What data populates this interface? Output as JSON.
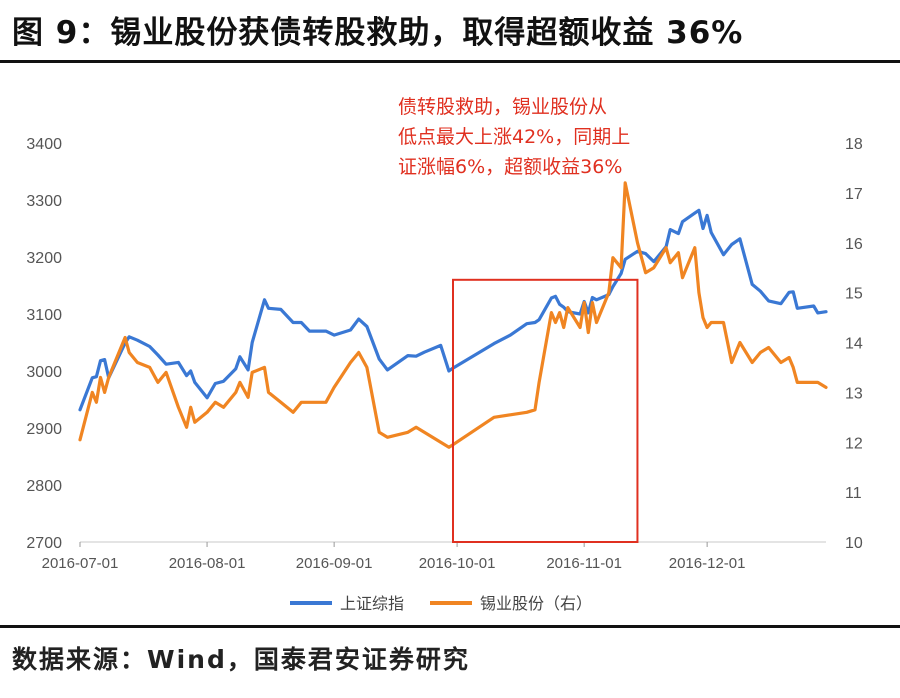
{
  "title": "图 9：锡业股份获债转股救助，取得超额收益 36%",
  "source": "数据来源：Wind，国泰君安证券研究",
  "chart_data": {
    "type": "line",
    "x_tick_labels": [
      "2016-07-01",
      "2016-08-01",
      "2016-09-01",
      "2016-10-01",
      "2016-11-01",
      "2016-12-01"
    ],
    "left_axis": {
      "ylim": [
        2700,
        3400
      ],
      "ticks": [
        2700,
        2800,
        2900,
        3000,
        3100,
        3200,
        3300,
        3400
      ]
    },
    "right_axis": {
      "ylim": [
        10,
        18
      ],
      "ticks": [
        10,
        11,
        12,
        13,
        14,
        15,
        16,
        17,
        18
      ]
    },
    "grid": false,
    "legend_placement": "bottom",
    "series": [
      {
        "name": "上证综指",
        "axis": "left",
        "color": "#3a78d4",
        "points": [
          [
            "2016-07-01",
            2932
          ],
          [
            "2016-07-04",
            2988
          ],
          [
            "2016-07-05",
            2990
          ],
          [
            "2016-07-06",
            3018
          ],
          [
            "2016-07-07",
            3020
          ],
          [
            "2016-07-08",
            2988
          ],
          [
            "2016-07-12",
            3049
          ],
          [
            "2016-07-13",
            3060
          ],
          [
            "2016-07-15",
            3054
          ],
          [
            "2016-07-18",
            3043
          ],
          [
            "2016-07-20",
            3028
          ],
          [
            "2016-07-22",
            3012
          ],
          [
            "2016-07-25",
            3015
          ],
          [
            "2016-07-27",
            2992
          ],
          [
            "2016-07-28",
            3000
          ],
          [
            "2016-07-29",
            2980
          ],
          [
            "2016-08-01",
            2953
          ],
          [
            "2016-08-03",
            2978
          ],
          [
            "2016-08-05",
            2982
          ],
          [
            "2016-08-08",
            3004
          ],
          [
            "2016-08-09",
            3025
          ],
          [
            "2016-08-11",
            3002
          ],
          [
            "2016-08-12",
            3050
          ],
          [
            "2016-08-15",
            3125
          ],
          [
            "2016-08-16",
            3110
          ],
          [
            "2016-08-19",
            3108
          ],
          [
            "2016-08-22",
            3085
          ],
          [
            "2016-08-24",
            3085
          ],
          [
            "2016-08-26",
            3070
          ],
          [
            "2016-08-30",
            3070
          ],
          [
            "2016-09-01",
            3063
          ],
          [
            "2016-09-05",
            3072
          ],
          [
            "2016-09-07",
            3091
          ],
          [
            "2016-09-09",
            3078
          ],
          [
            "2016-09-12",
            3021
          ],
          [
            "2016-09-14",
            3002
          ],
          [
            "2016-09-19",
            3027
          ],
          [
            "2016-09-21",
            3026
          ],
          [
            "2016-09-23",
            3033
          ],
          [
            "2016-09-27",
            3045
          ],
          [
            "2016-09-29",
            3000
          ],
          [
            "2016-09-30",
            3005
          ],
          [
            "2016-10-10",
            3048
          ],
          [
            "2016-10-14",
            3063
          ],
          [
            "2016-10-18",
            3083
          ],
          [
            "2016-10-20",
            3085
          ],
          [
            "2016-10-21",
            3090
          ],
          [
            "2016-10-24",
            3128
          ],
          [
            "2016-10-25",
            3131
          ],
          [
            "2016-10-26",
            3117
          ],
          [
            "2016-10-27",
            3112
          ],
          [
            "2016-10-28",
            3104
          ],
          [
            "2016-10-31",
            3100
          ],
          [
            "2016-11-01",
            3122
          ],
          [
            "2016-11-02",
            3102
          ],
          [
            "2016-11-03",
            3129
          ],
          [
            "2016-11-04",
            3125
          ],
          [
            "2016-11-07",
            3134
          ],
          [
            "2016-11-08",
            3148
          ],
          [
            "2016-11-10",
            3171
          ],
          [
            "2016-11-11",
            3196
          ],
          [
            "2016-11-14",
            3210
          ],
          [
            "2016-11-16",
            3206
          ],
          [
            "2016-11-18",
            3192
          ],
          [
            "2016-11-21",
            3218
          ],
          [
            "2016-11-22",
            3248
          ],
          [
            "2016-11-24",
            3241
          ],
          [
            "2016-11-25",
            3262
          ],
          [
            "2016-11-28",
            3277
          ],
          [
            "2016-11-29",
            3282
          ],
          [
            "2016-11-30",
            3250
          ],
          [
            "2016-12-01",
            3273
          ],
          [
            "2016-12-02",
            3243
          ],
          [
            "2016-12-05",
            3204
          ],
          [
            "2016-12-07",
            3222
          ],
          [
            "2016-12-09",
            3232
          ],
          [
            "2016-12-12",
            3152
          ],
          [
            "2016-12-14",
            3140
          ],
          [
            "2016-12-16",
            3123
          ],
          [
            "2016-12-19",
            3118
          ],
          [
            "2016-12-21",
            3138
          ],
          [
            "2016-12-22",
            3139
          ],
          [
            "2016-12-23",
            3110
          ],
          [
            "2016-12-27",
            3114
          ],
          [
            "2016-12-28",
            3102
          ],
          [
            "2016-12-30",
            3104
          ]
        ]
      },
      {
        "name": "锡业股份（右）",
        "axis": "right",
        "color": "#f08522",
        "points": [
          [
            "2016-07-01",
            12.05
          ],
          [
            "2016-07-04",
            13.0
          ],
          [
            "2016-07-05",
            12.8
          ],
          [
            "2016-07-06",
            13.3
          ],
          [
            "2016-07-07",
            13.0
          ],
          [
            "2016-07-08",
            13.3
          ],
          [
            "2016-07-12",
            14.1
          ],
          [
            "2016-07-13",
            13.8
          ],
          [
            "2016-07-15",
            13.6
          ],
          [
            "2016-07-18",
            13.5
          ],
          [
            "2016-07-20",
            13.2
          ],
          [
            "2016-07-22",
            13.4
          ],
          [
            "2016-07-25",
            12.7
          ],
          [
            "2016-07-27",
            12.3
          ],
          [
            "2016-07-28",
            12.7
          ],
          [
            "2016-07-29",
            12.4
          ],
          [
            "2016-08-01",
            12.6
          ],
          [
            "2016-08-03",
            12.8
          ],
          [
            "2016-08-05",
            12.7
          ],
          [
            "2016-08-08",
            13.0
          ],
          [
            "2016-08-09",
            13.2
          ],
          [
            "2016-08-11",
            12.9
          ],
          [
            "2016-08-12",
            13.4
          ],
          [
            "2016-08-15",
            13.5
          ],
          [
            "2016-08-16",
            13.0
          ],
          [
            "2016-08-19",
            12.8
          ],
          [
            "2016-08-22",
            12.6
          ],
          [
            "2016-08-24",
            12.8
          ],
          [
            "2016-08-26",
            12.8
          ],
          [
            "2016-08-30",
            12.8
          ],
          [
            "2016-09-01",
            13.1
          ],
          [
            "2016-09-05",
            13.6
          ],
          [
            "2016-09-07",
            13.8
          ],
          [
            "2016-09-09",
            13.5
          ],
          [
            "2016-09-12",
            12.2
          ],
          [
            "2016-09-14",
            12.1
          ],
          [
            "2016-09-19",
            12.2
          ],
          [
            "2016-09-21",
            12.3
          ],
          [
            "2016-09-23",
            12.2
          ],
          [
            "2016-09-27",
            12.0
          ],
          [
            "2016-09-29",
            11.9
          ],
          [
            "2016-09-30",
            11.95
          ],
          [
            "2016-10-10",
            12.5
          ],
          [
            "2016-10-14",
            12.55
          ],
          [
            "2016-10-18",
            12.6
          ],
          [
            "2016-10-20",
            12.65
          ],
          [
            "2016-10-21",
            13.2
          ],
          [
            "2016-10-24",
            14.6
          ],
          [
            "2016-10-25",
            14.4
          ],
          [
            "2016-10-26",
            14.6
          ],
          [
            "2016-10-27",
            14.3
          ],
          [
            "2016-10-28",
            14.7
          ],
          [
            "2016-10-31",
            14.3
          ],
          [
            "2016-11-01",
            14.8
          ],
          [
            "2016-11-02",
            14.2
          ],
          [
            "2016-11-03",
            14.8
          ],
          [
            "2016-11-04",
            14.4
          ],
          [
            "2016-11-07",
            15.0
          ],
          [
            "2016-11-08",
            15.7
          ],
          [
            "2016-11-10",
            15.5
          ],
          [
            "2016-11-11",
            17.2
          ],
          [
            "2016-11-14",
            16.0
          ],
          [
            "2016-11-16",
            15.4
          ],
          [
            "2016-11-18",
            15.5
          ],
          [
            "2016-11-21",
            15.9
          ],
          [
            "2016-11-22",
            15.6
          ],
          [
            "2016-11-24",
            15.8
          ],
          [
            "2016-11-25",
            15.3
          ],
          [
            "2016-11-28",
            15.9
          ],
          [
            "2016-11-29",
            15.0
          ],
          [
            "2016-11-30",
            14.5
          ],
          [
            "2016-12-01",
            14.3
          ],
          [
            "2016-12-02",
            14.4
          ],
          [
            "2016-12-05",
            14.4
          ],
          [
            "2016-12-07",
            13.6
          ],
          [
            "2016-12-09",
            14.0
          ],
          [
            "2016-12-12",
            13.6
          ],
          [
            "2016-12-14",
            13.8
          ],
          [
            "2016-12-16",
            13.9
          ],
          [
            "2016-12-19",
            13.6
          ],
          [
            "2016-12-21",
            13.7
          ],
          [
            "2016-12-22",
            13.5
          ],
          [
            "2016-12-23",
            13.2
          ],
          [
            "2016-12-27",
            13.2
          ],
          [
            "2016-12-28",
            13.2
          ],
          [
            "2016-12-30",
            13.1
          ]
        ]
      }
    ],
    "annotation": {
      "lines": [
        "债转股救助，锡业股份从",
        "低点最大上涨42%，同期上",
        "证涨幅6%，超额收益36%"
      ],
      "color": "#e03020",
      "box_x_range": [
        "2016-09-30",
        "2016-11-14"
      ],
      "box_y_range": [
        2700,
        3160
      ]
    }
  }
}
